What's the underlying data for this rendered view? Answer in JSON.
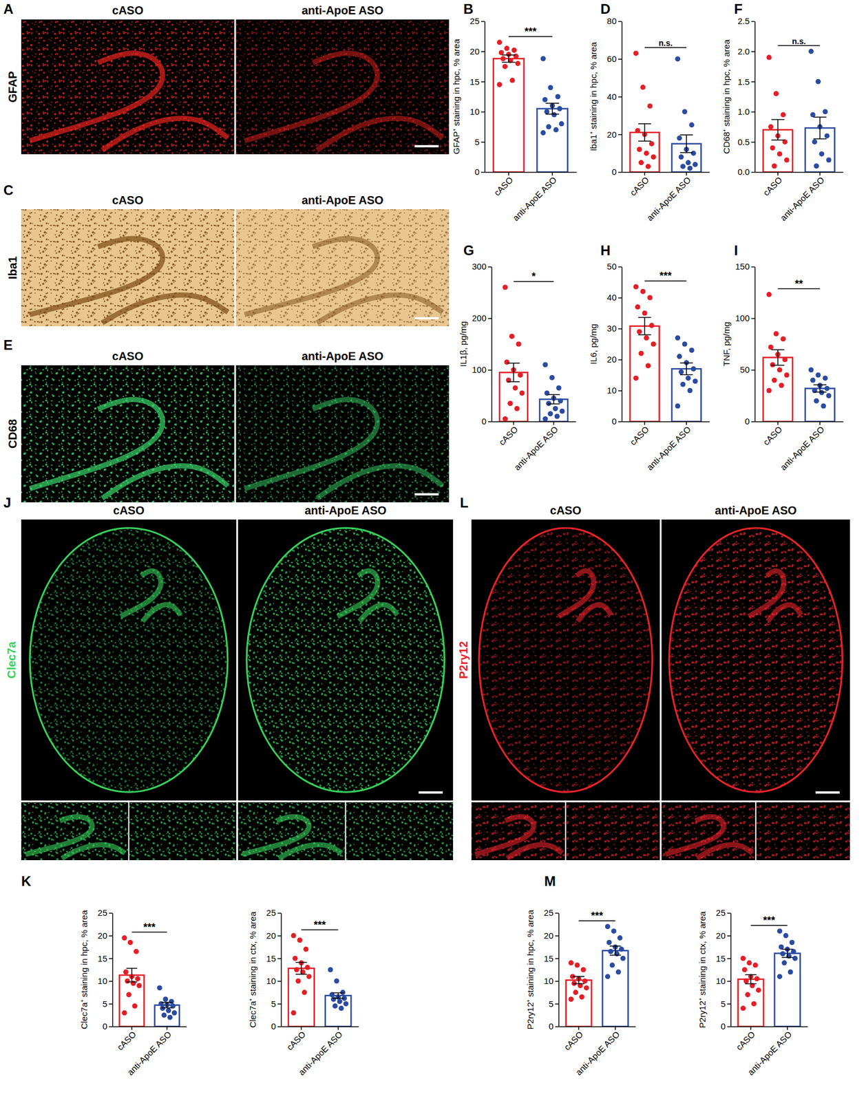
{
  "chart_data": [
    {
      "type": "bar",
      "panel": "B",
      "y_label": "GFAP⁺ staining in hpc, % area",
      "categories": [
        "cASO",
        "anti-ApoE ASO"
      ],
      "colors": [
        "#e41e26",
        "#2b4ba1"
      ],
      "values": [
        18.8,
        10.5
      ],
      "errors": [
        0.6,
        0.9
      ],
      "points": [
        [
          21.5,
          20.5,
          20.2,
          19.8,
          19.5,
          19.2,
          18.8,
          18.5,
          18,
          17.5,
          15.2,
          14.5
        ],
        [
          18.8,
          14,
          12.5,
          12,
          11,
          10.5,
          10,
          9.5,
          8,
          7.5,
          7,
          6.5
        ]
      ],
      "ylim": [
        0,
        25
      ],
      "yticks": [
        0,
        5,
        10,
        15,
        20,
        25
      ],
      "significance": "***"
    },
    {
      "type": "bar",
      "panel": "D",
      "y_label": "Iba1⁺ staining in hpc, % area",
      "categories": [
        "cASO",
        "anti-ApoE ASO"
      ],
      "colors": [
        "#e41e26",
        "#2b4ba1"
      ],
      "values": [
        21,
        15
      ],
      "errors": [
        4.6,
        4.7
      ],
      "points": [
        [
          63,
          45,
          35,
          22,
          20,
          15,
          12,
          10,
          8,
          5,
          3
        ],
        [
          60,
          32,
          25,
          18,
          12,
          10,
          8,
          5,
          4,
          3,
          2
        ]
      ],
      "ylim": [
        0,
        80
      ],
      "yticks": [
        0,
        20,
        40,
        60,
        80
      ],
      "significance": "n.s."
    },
    {
      "type": "bar",
      "panel": "F",
      "y_label": "CD68⁺ staining in hpc, % area",
      "categories": [
        "cASO",
        "anti-ApoE ASO"
      ],
      "colors": [
        "#e41e26",
        "#2b4ba1"
      ],
      "values": [
        0.7,
        0.73
      ],
      "errors": [
        0.17,
        0.18
      ],
      "points": [
        [
          1.9,
          1.3,
          0.95,
          0.75,
          0.6,
          0.5,
          0.4,
          0.3,
          0.2,
          0.1
        ],
        [
          2.0,
          1.5,
          1.0,
          0.95,
          0.75,
          0.6,
          0.5,
          0.3,
          0.2,
          0.1
        ]
      ],
      "ylim": [
        0,
        2.5
      ],
      "yticks": [
        {
          "value": 0,
          "label": "0.0"
        },
        0.5,
        {
          "value": 1,
          "label": "1.0"
        },
        1.5,
        {
          "value": 2,
          "label": "2.0"
        },
        2.5
      ],
      "significance": "n.s."
    },
    {
      "type": "bar",
      "panel": "G",
      "y_label": "IL1β, pg/mg",
      "categories": [
        "cASO",
        "anti-ApoE ASO"
      ],
      "colors": [
        "#e41e26",
        "#2b4ba1"
      ],
      "values": [
        95,
        43
      ],
      "errors": [
        18,
        9
      ],
      "points": [
        [
          260,
          165,
          150,
          115,
          100,
          90,
          80,
          65,
          55,
          35,
          25,
          5
        ],
        [
          110,
          85,
          65,
          55,
          45,
          40,
          35,
          25,
          20,
          15,
          10,
          5
        ]
      ],
      "ylim": [
        0,
        300
      ],
      "yticks": [
        0,
        100,
        200,
        300
      ],
      "significance": "*"
    },
    {
      "type": "bar",
      "panel": "H",
      "y_label": "IL6, pg/mg",
      "categories": [
        "cASO",
        "anti-ApoE ASO"
      ],
      "colors": [
        "#e41e26",
        "#2b4ba1"
      ],
      "values": [
        30.8,
        17
      ],
      "errors": [
        2.8,
        1.9
      ],
      "points": [
        [
          43.5,
          42,
          40,
          37,
          35,
          31,
          29,
          27,
          25,
          22,
          18,
          14
        ],
        [
          27,
          25,
          23,
          21,
          19,
          17,
          16,
          14,
          13,
          12,
          10,
          5
        ]
      ],
      "ylim": [
        0,
        50
      ],
      "yticks": [
        0,
        10,
        20,
        30,
        40,
        50
      ],
      "significance": "***"
    },
    {
      "type": "bar",
      "panel": "I",
      "y_label": "TNF, pg/mg",
      "categories": [
        "cASO",
        "anti-ApoE ASO"
      ],
      "colors": [
        "#e41e26",
        "#2b4ba1"
      ],
      "values": [
        62,
        32
      ],
      "errors": [
        7.5,
        3.5
      ],
      "points": [
        [
          123,
          85,
          80,
          72,
          65,
          60,
          55,
          50,
          45,
          40,
          35,
          30
        ],
        [
          50,
          45,
          42,
          40,
          35,
          32,
          30,
          28,
          25,
          20,
          15
        ]
      ],
      "ylim": [
        0,
        150
      ],
      "yticks": [
        0,
        50,
        100,
        150
      ],
      "significance": "**"
    },
    {
      "type": "bar",
      "panel": "K",
      "y_label": "Clec7a⁺ staining in hpc, % area",
      "categories": [
        "cASO",
        "anti-ApoE ASO"
      ],
      "colors": [
        "#e41e26",
        "#2b4ba1"
      ],
      "values": [
        11.3,
        4.7
      ],
      "errors": [
        1.5,
        0.6
      ],
      "points": [
        [
          19.5,
          18.5,
          16.5,
          12,
          11,
          10.5,
          10,
          9.5,
          9,
          7,
          4.5,
          3
        ],
        [
          8.5,
          6,
          5.5,
          5,
          4.8,
          4.5,
          4,
          3.5,
          3,
          2.5,
          2
        ]
      ],
      "ylim": [
        0,
        25
      ],
      "yticks": [
        0,
        5,
        10,
        15,
        20,
        25
      ],
      "significance": "***"
    },
    {
      "type": "bar",
      "y_label": "Clec7a⁺ staining in ctx, % area",
      "categories": [
        "cASO",
        "anti-ApoE ASO"
      ],
      "colors": [
        "#e41e26",
        "#2b4ba1"
      ],
      "values": [
        12.8,
        6.8
      ],
      "errors": [
        1.3,
        0.6
      ],
      "points": [
        [
          20,
          19,
          17,
          15,
          14,
          13,
          12.5,
          12,
          11,
          10,
          7.5,
          3
        ],
        [
          12.5,
          10,
          7.5,
          7,
          6.5,
          6.2,
          6,
          5.5,
          5,
          4.5,
          4
        ]
      ],
      "ylim": [
        0,
        25
      ],
      "yticks": [
        0,
        5,
        10,
        15,
        20,
        25
      ],
      "significance": "***"
    },
    {
      "type": "bar",
      "panel": "M",
      "y_label": "P2ry12⁺ staining in hpc, % area",
      "categories": [
        "cASO",
        "anti-ApoE ASO"
      ],
      "colors": [
        "#e41e26",
        "#2b4ba1"
      ],
      "values": [
        10.2,
        16.7
      ],
      "errors": [
        0.8,
        1.0
      ],
      "points": [
        [
          14,
          13.5,
          12.5,
          11,
          10.5,
          10,
          9.5,
          9,
          8.5,
          7.5,
          6.5,
          6
        ],
        [
          22,
          21,
          19.5,
          18.5,
          17.5,
          17,
          16.5,
          16,
          15,
          13.5,
          12,
          11
        ]
      ],
      "ylim": [
        0,
        25
      ],
      "yticks": [
        0,
        5,
        10,
        15,
        20,
        25
      ],
      "significance": "***"
    },
    {
      "type": "bar",
      "y_label": "P2ry12⁺ staining in ctx, % area",
      "categories": [
        "cASO",
        "anti-ApoE ASO"
      ],
      "colors": [
        "#e41e26",
        "#2b4ba1"
      ],
      "values": [
        10.4,
        16.1
      ],
      "errors": [
        1.0,
        0.9
      ],
      "points": [
        [
          15,
          14,
          13.5,
          12.5,
          11,
          10.5,
          10,
          9,
          8,
          7,
          5,
          4
        ],
        [
          21,
          20,
          18.5,
          17.5,
          17,
          16.5,
          16,
          15.5,
          15,
          14,
          12,
          11
        ]
      ],
      "ylim": [
        0,
        25
      ],
      "yticks": [
        0,
        5,
        10,
        15,
        20,
        25
      ],
      "significance": "***"
    }
  ],
  "image_panels": [
    {
      "panel": "A",
      "stain": "GFAP",
      "color": "#e8231f",
      "background": "#000000",
      "columns": [
        "cASO",
        "anti-ApoE ASO"
      ]
    },
    {
      "panel": "C",
      "stain": "Iba1",
      "color": "#7a4a14",
      "background": "#e9c690",
      "columns": [
        "cASO",
        "anti-ApoE ASO"
      ]
    },
    {
      "panel": "E",
      "stain": "CD68",
      "color": "#3bd46a",
      "background": "#000000",
      "columns": [
        "cASO",
        "anti-ApoE ASO"
      ]
    },
    {
      "panel": "J",
      "stain": "Clec7a",
      "color": "#38d05c",
      "background": "#000000",
      "columns": [
        "cASO",
        "anti-ApoE ASO"
      ]
    },
    {
      "panel": "L",
      "stain": "P2ry12",
      "color": "#e8232a",
      "background": "#000000",
      "columns": [
        "cASO",
        "anti-ApoE ASO"
      ]
    }
  ]
}
